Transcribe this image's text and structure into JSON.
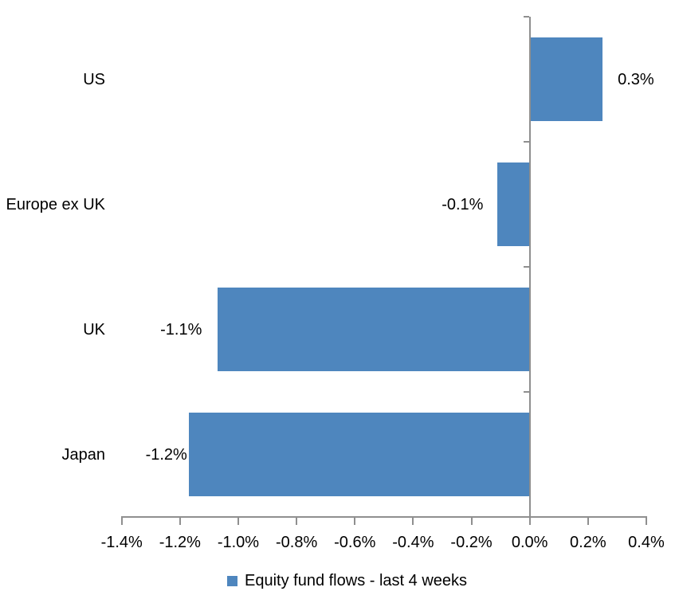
{
  "chart_data": {
    "type": "bar",
    "orientation": "horizontal",
    "title": "",
    "categories": [
      "US",
      "Europe ex UK",
      "UK",
      "Japan"
    ],
    "values": [
      0.3,
      -0.1,
      -1.1,
      -1.2
    ],
    "values_precise_pct": [
      0.25,
      -0.11,
      -1.07,
      -1.17
    ],
    "data_labels": [
      "0.3%",
      "-0.1%",
      "-1.1%",
      "-1.2%"
    ],
    "x_tick_labels": [
      "-1.4%",
      "-1.2%",
      "-1.0%",
      "-0.8%",
      "-0.6%",
      "-0.4%",
      "-0.2%",
      "0.0%",
      "0.2%",
      "0.4%"
    ],
    "xlim": [
      -1.4,
      0.4
    ],
    "x_tick_step": 0.2,
    "grid": false,
    "legend_position": "bottom",
    "legend": [
      {
        "label": "Equity fund flows - last 4 weeks",
        "swatch": "blue-square"
      }
    ],
    "colors": {
      "bar": "#4E86BE",
      "axis": "#8F8F8F",
      "text": "#000000",
      "background": "#FFFFFF"
    }
  }
}
